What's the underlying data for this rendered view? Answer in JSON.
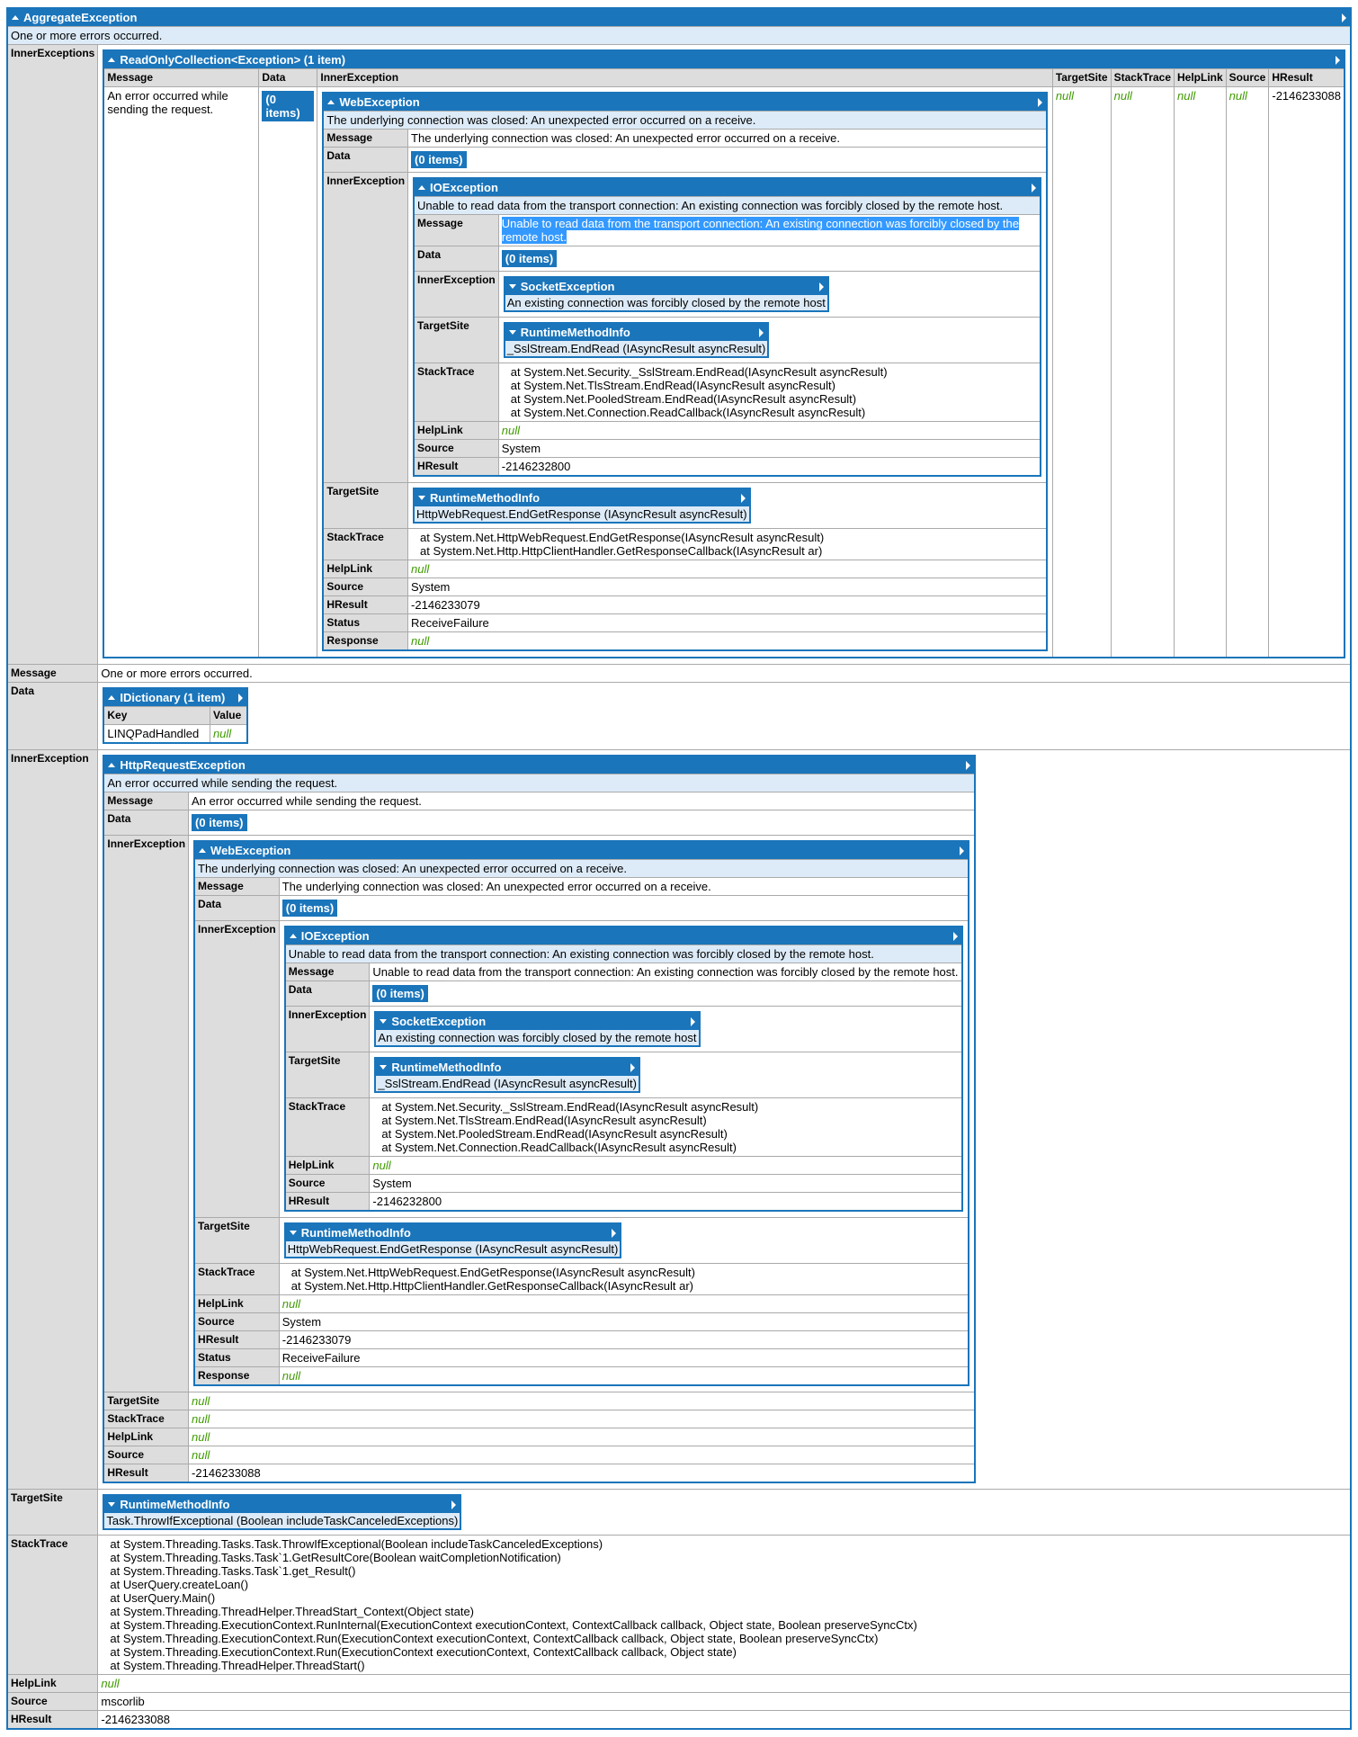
{
  "root": {
    "t": "exc",
    "type": "AggregateException",
    "summary": "One or more errors occurred.",
    "props": [
      {
        "k": "InnerExceptions",
        "val": {
          "t": "table",
          "title": "ReadOnlyCollection<Exception> (1 item)",
          "columns": [
            "Message",
            "Data",
            "InnerException",
            "TargetSite",
            "StackTrace",
            "HelpLink",
            "Source",
            "HResult"
          ],
          "rows": [
            [
              {
                "t": "text",
                "v": "An error occurred while sending the request."
              },
              {
                "t": "items",
                "v": "(0 items)"
              },
              {
                "t": "exc",
                "type": "WebException",
                "summary": "The underlying connection was closed: An unexpected error occurred on a receive.",
                "props": [
                  {
                    "k": "Message",
                    "val": {
                      "t": "text",
                      "v": "The underlying connection was closed: An unexpected error occurred on a receive."
                    }
                  },
                  {
                    "k": "Data",
                    "val": {
                      "t": "items",
                      "v": "(0 items)"
                    }
                  },
                  {
                    "k": "InnerException",
                    "val": {
                      "t": "exc",
                      "type": "IOException",
                      "summary": "Unable to read data from the transport connection: An existing connection was forcibly closed by the remote host.",
                      "props": [
                        {
                          "k": "Message",
                          "val": {
                            "t": "text",
                            "v": "Unable to read data from the transport connection: An existing connection was forcibly closed by the remote host.",
                            "selected": true
                          }
                        },
                        {
                          "k": "Data",
                          "val": {
                            "t": "items",
                            "v": "(0 items)"
                          }
                        },
                        {
                          "k": "InnerException",
                          "val": {
                            "t": "collapsed",
                            "type": "SocketException",
                            "text": "An existing connection was forcibly closed by the remote host"
                          }
                        },
                        {
                          "k": "TargetSite",
                          "val": {
                            "t": "collapsed",
                            "type": "RuntimeMethodInfo",
                            "text": "_SslStream.EndRead (IAsyncResult asyncResult)"
                          }
                        },
                        {
                          "k": "StackTrace",
                          "val": {
                            "t": "stack",
                            "lines": [
                              "at System.Net.Security._SslStream.EndRead(IAsyncResult asyncResult)",
                              "at System.Net.TlsStream.EndRead(IAsyncResult asyncResult)",
                              "at System.Net.PooledStream.EndRead(IAsyncResult asyncResult)",
                              "at System.Net.Connection.ReadCallback(IAsyncResult asyncResult)"
                            ]
                          }
                        },
                        {
                          "k": "HelpLink",
                          "val": {
                            "t": "null",
                            "v": "null"
                          }
                        },
                        {
                          "k": "Source",
                          "val": {
                            "t": "text",
                            "v": "System"
                          }
                        },
                        {
                          "k": "HResult",
                          "val": {
                            "t": "text",
                            "v": "-2146232800"
                          }
                        }
                      ]
                    }
                  },
                  {
                    "k": "TargetSite",
                    "val": {
                      "t": "collapsed",
                      "type": "RuntimeMethodInfo",
                      "text": "HttpWebRequest.EndGetResponse (IAsyncResult asyncResult)"
                    }
                  },
                  {
                    "k": "StackTrace",
                    "val": {
                      "t": "stack",
                      "lines": [
                        "at System.Net.HttpWebRequest.EndGetResponse(IAsyncResult asyncResult)",
                        "at System.Net.Http.HttpClientHandler.GetResponseCallback(IAsyncResult ar)"
                      ]
                    }
                  },
                  {
                    "k": "HelpLink",
                    "val": {
                      "t": "null",
                      "v": "null"
                    }
                  },
                  {
                    "k": "Source",
                    "val": {
                      "t": "text",
                      "v": "System"
                    }
                  },
                  {
                    "k": "HResult",
                    "val": {
                      "t": "text",
                      "v": "-2146233079"
                    }
                  },
                  {
                    "k": "Status",
                    "val": {
                      "t": "text",
                      "v": "ReceiveFailure"
                    }
                  },
                  {
                    "k": "Response",
                    "val": {
                      "t": "null",
                      "v": "null"
                    }
                  }
                ]
              },
              {
                "t": "null",
                "v": "null"
              },
              {
                "t": "null",
                "v": "null"
              },
              {
                "t": "null",
                "v": "null"
              },
              {
                "t": "null",
                "v": "null"
              },
              {
                "t": "text",
                "v": "-2146233088"
              }
            ]
          ]
        }
      },
      {
        "k": "Message",
        "val": {
          "t": "text",
          "v": "One or more errors occurred."
        }
      },
      {
        "k": "Data",
        "val": {
          "t": "table",
          "title": "IDictionary (1 item)",
          "columns": [
            "Key",
            "Value"
          ],
          "rows": [
            [
              {
                "t": "text",
                "v": "LINQPadHandled"
              },
              {
                "t": "null",
                "v": "null"
              }
            ]
          ]
        }
      },
      {
        "k": "InnerException",
        "val": {
          "t": "exc",
          "type": "HttpRequestException",
          "summary": "An error occurred while sending the request.",
          "props": [
            {
              "k": "Message",
              "val": {
                "t": "text",
                "v": "An error occurred while sending the request."
              }
            },
            {
              "k": "Data",
              "val": {
                "t": "items",
                "v": "(0 items)"
              }
            },
            {
              "k": "InnerException",
              "val": {
                "t": "exc",
                "type": "WebException",
                "summary": "The underlying connection was closed: An unexpected error occurred on a receive.",
                "props": [
                  {
                    "k": "Message",
                    "val": {
                      "t": "text",
                      "v": "The underlying connection was closed: An unexpected error occurred on a receive."
                    }
                  },
                  {
                    "k": "Data",
                    "val": {
                      "t": "items",
                      "v": "(0 items)"
                    }
                  },
                  {
                    "k": "InnerException",
                    "val": {
                      "t": "exc",
                      "type": "IOException",
                      "summary": "Unable to read data from the transport connection: An existing connection was forcibly closed by the remote host.",
                      "props": [
                        {
                          "k": "Message",
                          "val": {
                            "t": "text",
                            "v": "Unable to read data from the transport connection: An existing connection was forcibly closed by the remote host."
                          }
                        },
                        {
                          "k": "Data",
                          "val": {
                            "t": "items",
                            "v": "(0 items)"
                          }
                        },
                        {
                          "k": "InnerException",
                          "val": {
                            "t": "collapsed",
                            "type": "SocketException",
                            "text": "An existing connection was forcibly closed by the remote host"
                          }
                        },
                        {
                          "k": "TargetSite",
                          "val": {
                            "t": "collapsed",
                            "type": "RuntimeMethodInfo",
                            "text": "_SslStream.EndRead (IAsyncResult asyncResult)"
                          }
                        },
                        {
                          "k": "StackTrace",
                          "val": {
                            "t": "stack",
                            "lines": [
                              "at System.Net.Security._SslStream.EndRead(IAsyncResult asyncResult)",
                              "at System.Net.TlsStream.EndRead(IAsyncResult asyncResult)",
                              "at System.Net.PooledStream.EndRead(IAsyncResult asyncResult)",
                              "at System.Net.Connection.ReadCallback(IAsyncResult asyncResult)"
                            ]
                          }
                        },
                        {
                          "k": "HelpLink",
                          "val": {
                            "t": "null",
                            "v": "null"
                          }
                        },
                        {
                          "k": "Source",
                          "val": {
                            "t": "text",
                            "v": "System"
                          }
                        },
                        {
                          "k": "HResult",
                          "val": {
                            "t": "text",
                            "v": "-2146232800"
                          }
                        }
                      ]
                    }
                  },
                  {
                    "k": "TargetSite",
                    "val": {
                      "t": "collapsed",
                      "type": "RuntimeMethodInfo",
                      "text": "HttpWebRequest.EndGetResponse (IAsyncResult asyncResult)"
                    }
                  },
                  {
                    "k": "StackTrace",
                    "val": {
                      "t": "stack",
                      "lines": [
                        "at System.Net.HttpWebRequest.EndGetResponse(IAsyncResult asyncResult)",
                        "at System.Net.Http.HttpClientHandler.GetResponseCallback(IAsyncResult ar)"
                      ]
                    }
                  },
                  {
                    "k": "HelpLink",
                    "val": {
                      "t": "null",
                      "v": "null"
                    }
                  },
                  {
                    "k": "Source",
                    "val": {
                      "t": "text",
                      "v": "System"
                    }
                  },
                  {
                    "k": "HResult",
                    "val": {
                      "t": "text",
                      "v": "-2146233079"
                    }
                  },
                  {
                    "k": "Status",
                    "val": {
                      "t": "text",
                      "v": "ReceiveFailure"
                    }
                  },
                  {
                    "k": "Response",
                    "val": {
                      "t": "null",
                      "v": "null"
                    }
                  }
                ]
              }
            },
            {
              "k": "TargetSite",
              "val": {
                "t": "null",
                "v": "null"
              }
            },
            {
              "k": "StackTrace",
              "val": {
                "t": "null",
                "v": "null"
              }
            },
            {
              "k": "HelpLink",
              "val": {
                "t": "null",
                "v": "null"
              }
            },
            {
              "k": "Source",
              "val": {
                "t": "null",
                "v": "null"
              }
            },
            {
              "k": "HResult",
              "val": {
                "t": "text",
                "v": "-2146233088"
              }
            }
          ]
        }
      },
      {
        "k": "TargetSite",
        "val": {
          "t": "collapsed",
          "type": "RuntimeMethodInfo",
          "text": "Task.ThrowIfExceptional (Boolean includeTaskCanceledExceptions)"
        }
      },
      {
        "k": "StackTrace",
        "val": {
          "t": "stack",
          "lines": [
            "at System.Threading.Tasks.Task.ThrowIfExceptional(Boolean includeTaskCanceledExceptions)",
            "at System.Threading.Tasks.Task`1.GetResultCore(Boolean waitCompletionNotification)",
            "at System.Threading.Tasks.Task`1.get_Result()",
            "at UserQuery.createLoan()",
            "at UserQuery.Main()",
            "at System.Threading.ThreadHelper.ThreadStart_Context(Object state)",
            "at System.Threading.ExecutionContext.RunInternal(ExecutionContext executionContext, ContextCallback callback, Object state, Boolean preserveSyncCtx)",
            "at System.Threading.ExecutionContext.Run(ExecutionContext executionContext, ContextCallback callback, Object state, Boolean preserveSyncCtx)",
            "at System.Threading.ExecutionContext.Run(ExecutionContext executionContext, ContextCallback callback, Object state)",
            "at System.Threading.ThreadHelper.ThreadStart()"
          ]
        }
      },
      {
        "k": "HelpLink",
        "val": {
          "t": "null",
          "v": "null"
        }
      },
      {
        "k": "Source",
        "val": {
          "t": "text",
          "v": "mscorlib"
        }
      },
      {
        "k": "HResult",
        "val": {
          "t": "text",
          "v": "-2146233088"
        }
      }
    ]
  },
  "colors": {
    "header": "#1a75bb",
    "summary_bg": "#ddebf8",
    "key_bg": "#dddddd",
    "null_text": "#3f9a00",
    "selection": "#3399ff"
  },
  "icons": {
    "expanded": "triangle-up-icon",
    "collapsed": "triangle-down-icon",
    "open": "triangle-right-icon"
  }
}
